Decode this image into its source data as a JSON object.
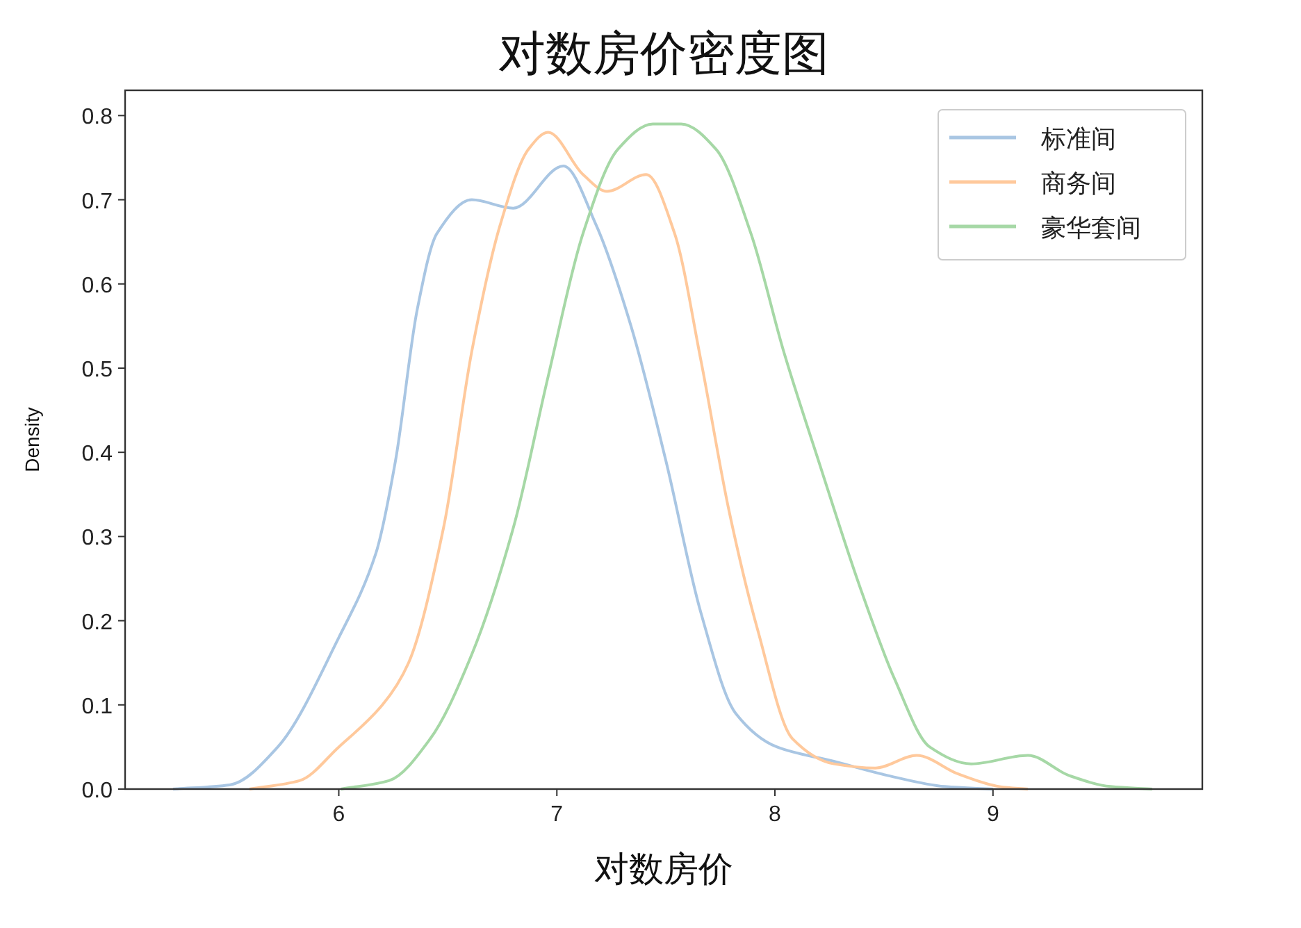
{
  "chart_data": {
    "type": "line",
    "title": "对数房价密度图",
    "xlabel": "对数房价",
    "ylabel": "Density",
    "xlim": [
      5.02,
      9.96
    ],
    "ylim": [
      0,
      0.83
    ],
    "xticks": [
      6,
      7,
      8,
      9
    ],
    "yticks": [
      {
        "value": 0,
        "label": "0.0"
      },
      0.1,
      0.2,
      0.3,
      0.4,
      0.5,
      0.6,
      0.7,
      0.8
    ],
    "grid": false,
    "legend": "top right",
    "series": [
      {
        "name": "标准间",
        "color": "#a9c6e3",
        "x": [
          5.24,
          5.5,
          5.72,
          6.0,
          6.17,
          6.26,
          6.36,
          6.45,
          6.61,
          6.8,
          7.03,
          7.18,
          7.34,
          7.5,
          7.66,
          7.82,
          8.01,
          8.27,
          8.52,
          8.78,
          9.0
        ],
        "values": [
          0,
          0.005,
          0.05,
          0.18,
          0.28,
          0.39,
          0.57,
          0.66,
          0.7,
          0.69,
          0.74,
          0.67,
          0.55,
          0.39,
          0.21,
          0.09,
          0.05,
          0.033,
          0.016,
          0.003,
          0
        ]
      },
      {
        "name": "商务间",
        "color": "#ffc99c",
        "x": [
          5.59,
          5.82,
          6.0,
          6.2,
          6.32,
          6.48,
          6.61,
          6.74,
          6.87,
          6.96,
          7.12,
          7.23,
          7.41,
          7.54,
          7.66,
          7.79,
          7.92,
          8.08,
          8.27,
          8.46,
          8.65,
          8.84,
          9.03,
          9.16
        ],
        "values": [
          0,
          0.01,
          0.05,
          0.1,
          0.15,
          0.31,
          0.52,
          0.67,
          0.76,
          0.78,
          0.73,
          0.71,
          0.73,
          0.66,
          0.51,
          0.33,
          0.19,
          0.06,
          0.03,
          0.025,
          0.04,
          0.018,
          0.003,
          0
        ]
      },
      {
        "name": "豪华套间",
        "color": "#a6d8a6",
        "x": [
          6.01,
          6.23,
          6.42,
          6.61,
          6.8,
          6.96,
          7.12,
          7.28,
          7.44,
          7.57,
          7.73,
          7.89,
          8.04,
          8.2,
          8.39,
          8.55,
          8.71,
          8.9,
          9.16,
          9.35,
          9.54,
          9.73
        ],
        "values": [
          0,
          0.01,
          0.06,
          0.16,
          0.31,
          0.49,
          0.66,
          0.76,
          0.79,
          0.79,
          0.76,
          0.66,
          0.52,
          0.39,
          0.24,
          0.13,
          0.05,
          0.03,
          0.04,
          0.016,
          0.003,
          0
        ]
      }
    ]
  }
}
